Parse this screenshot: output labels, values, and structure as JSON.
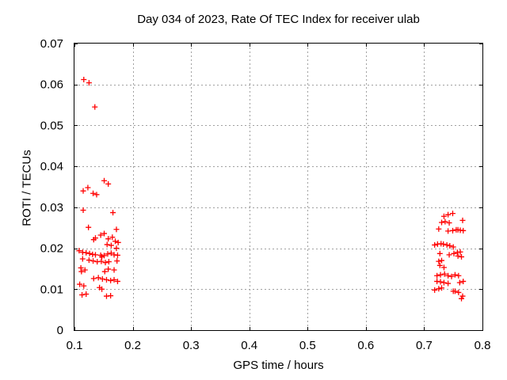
{
  "chart_data": {
    "type": "scatter",
    "title": "Day 034 of 2023, Rate Of TEC Index for receiver ulab",
    "xlabel": "GPS time / hours",
    "ylabel": "ROTI / TECUs",
    "xlim": [
      0.1,
      0.8
    ],
    "ylim": [
      0,
      0.07
    ],
    "xticks": {
      "values": [
        0.1,
        0.2,
        0.3,
        0.4,
        0.5,
        0.6,
        0.7,
        0.8
      ],
      "labels": [
        "0.1",
        "0.2",
        "0.3",
        "0.4",
        "0.5",
        "0.6",
        "0.7",
        "0.8"
      ]
    },
    "yticks": {
      "values": [
        0,
        0.01,
        0.02,
        0.03,
        0.04,
        0.05,
        0.06,
        0.07
      ],
      "labels": [
        "0",
        "0.01",
        "0.02",
        "0.03",
        "0.04",
        "0.05",
        "0.06",
        "0.07"
      ]
    },
    "grid": {
      "visible": true,
      "style": "dashed",
      "color": "#a0a0a0"
    },
    "legend": "none",
    "marker": {
      "shape": "plus",
      "color": "#ff0000",
      "size": 7
    },
    "series": [
      {
        "name": "ROTI",
        "points": [
          [
            0.116,
            0.0612
          ],
          [
            0.125,
            0.0604
          ],
          [
            0.135,
            0.0545
          ],
          [
            0.151,
            0.0365
          ],
          [
            0.158,
            0.0357
          ],
          [
            0.123,
            0.0348
          ],
          [
            0.115,
            0.034
          ],
          [
            0.132,
            0.0334
          ],
          [
            0.138,
            0.0331
          ],
          [
            0.115,
            0.0293
          ],
          [
            0.166,
            0.0287
          ],
          [
            0.124,
            0.0251
          ],
          [
            0.172,
            0.0246
          ],
          [
            0.151,
            0.0236
          ],
          [
            0.145,
            0.0232
          ],
          [
            0.165,
            0.0227
          ],
          [
            0.136,
            0.0225
          ],
          [
            0.133,
            0.0221
          ],
          [
            0.158,
            0.0223
          ],
          [
            0.17,
            0.0217
          ],
          [
            0.175,
            0.0214
          ],
          [
            0.156,
            0.0209
          ],
          [
            0.163,
            0.0207
          ],
          [
            0.172,
            0.02
          ],
          [
            0.108,
            0.0194
          ],
          [
            0.114,
            0.019
          ],
          [
            0.12,
            0.0189
          ],
          [
            0.126,
            0.0187
          ],
          [
            0.131,
            0.0185
          ],
          [
            0.136,
            0.0184
          ],
          [
            0.145,
            0.0183
          ],
          [
            0.151,
            0.0182
          ],
          [
            0.157,
            0.0186
          ],
          [
            0.163,
            0.0188
          ],
          [
            0.168,
            0.0184
          ],
          [
            0.174,
            0.0183
          ],
          [
            0.147,
            0.0179
          ],
          [
            0.114,
            0.0174
          ],
          [
            0.125,
            0.0171
          ],
          [
            0.132,
            0.0169
          ],
          [
            0.139,
            0.0167
          ],
          [
            0.146,
            0.0168
          ],
          [
            0.153,
            0.0165
          ],
          [
            0.159,
            0.0167
          ],
          [
            0.173,
            0.0169
          ],
          [
            0.111,
            0.0152
          ],
          [
            0.118,
            0.0147
          ],
          [
            0.112,
            0.0143
          ],
          [
            0.152,
            0.0143
          ],
          [
            0.158,
            0.0149
          ],
          [
            0.168,
            0.0147
          ],
          [
            0.133,
            0.0126
          ],
          [
            0.141,
            0.0128
          ],
          [
            0.148,
            0.0125
          ],
          [
            0.155,
            0.0123
          ],
          [
            0.162,
            0.0121
          ],
          [
            0.168,
            0.0123
          ],
          [
            0.174,
            0.0119
          ],
          [
            0.109,
            0.0112
          ],
          [
            0.116,
            0.0108
          ],
          [
            0.143,
            0.0104
          ],
          [
            0.147,
            0.01
          ],
          [
            0.113,
            0.0086
          ],
          [
            0.12,
            0.0088
          ],
          [
            0.155,
            0.0083
          ],
          [
            0.162,
            0.0084
          ],
          [
            0.749,
            0.0285
          ],
          [
            0.741,
            0.0282
          ],
          [
            0.734,
            0.0278
          ],
          [
            0.766,
            0.0268
          ],
          [
            0.736,
            0.0265
          ],
          [
            0.73,
            0.0263
          ],
          [
            0.743,
            0.0262
          ],
          [
            0.725,
            0.0247
          ],
          [
            0.755,
            0.0245
          ],
          [
            0.758,
            0.0245
          ],
          [
            0.762,
            0.0244
          ],
          [
            0.767,
            0.0243
          ],
          [
            0.741,
            0.0242
          ],
          [
            0.749,
            0.0243
          ],
          [
            0.718,
            0.0208
          ],
          [
            0.723,
            0.021
          ],
          [
            0.729,
            0.0211
          ],
          [
            0.733,
            0.021
          ],
          [
            0.739,
            0.0208
          ],
          [
            0.744,
            0.0206
          ],
          [
            0.75,
            0.0203
          ],
          [
            0.757,
            0.019
          ],
          [
            0.762,
            0.0191
          ],
          [
            0.727,
            0.0187
          ],
          [
            0.743,
            0.0184
          ],
          [
            0.751,
            0.0187
          ],
          [
            0.758,
            0.0181
          ],
          [
            0.764,
            0.0179
          ],
          [
            0.725,
            0.0168
          ],
          [
            0.73,
            0.017
          ],
          [
            0.727,
            0.0158
          ],
          [
            0.734,
            0.0153
          ],
          [
            0.722,
            0.0133
          ],
          [
            0.728,
            0.0135
          ],
          [
            0.735,
            0.0137
          ],
          [
            0.741,
            0.0133
          ],
          [
            0.747,
            0.0131
          ],
          [
            0.753,
            0.0135
          ],
          [
            0.759,
            0.0133
          ],
          [
            0.722,
            0.0119
          ],
          [
            0.728,
            0.0118
          ],
          [
            0.734,
            0.0116
          ],
          [
            0.741,
            0.0114
          ],
          [
            0.761,
            0.0116
          ],
          [
            0.767,
            0.0119
          ],
          [
            0.718,
            0.0098
          ],
          [
            0.725,
            0.0101
          ],
          [
            0.73,
            0.0103
          ],
          [
            0.75,
            0.0095
          ],
          [
            0.753,
            0.0095
          ],
          [
            0.759,
            0.0092
          ],
          [
            0.766,
            0.0083
          ],
          [
            0.764,
            0.0077
          ]
        ]
      }
    ]
  }
}
